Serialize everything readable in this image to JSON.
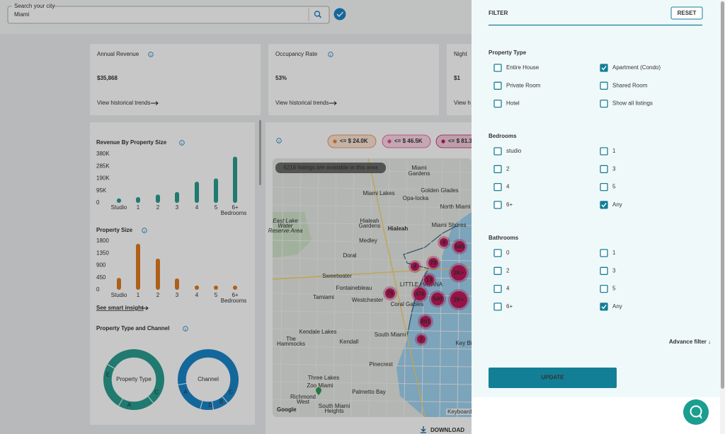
{
  "search": {
    "label": "Search your city",
    "value": "Miami"
  },
  "cards": [
    {
      "title": "Annual Revenue",
      "value": "$35,868",
      "link": "View historical trends"
    },
    {
      "title": "Occupancy Rate",
      "value": "53%",
      "link": "View historical trends"
    },
    {
      "title": "Night",
      "value": "$1",
      "link": "View h"
    }
  ],
  "revenue_chart": {
    "type": "bar",
    "title": "Revenue By Property Size",
    "ylim": [
      0,
      380000
    ],
    "yticks": [
      {
        "value": 380000,
        "label": "380K"
      },
      {
        "value": 285000,
        "label": "285K"
      },
      {
        "value": 190000,
        "label": "190K"
      },
      {
        "value": 95000,
        "label": "95K"
      },
      0
    ],
    "categories": [
      "Studio",
      "1",
      "2",
      "3",
      "4",
      "5",
      "6+"
    ],
    "values": [
      35000,
      45000,
      65000,
      85000,
      165000,
      190000,
      360000
    ],
    "x_label": "Bedrooms",
    "color": "#2a9d8f"
  },
  "size_chart": {
    "type": "bar",
    "title": "Property Size",
    "ylim": [
      0,
      1800
    ],
    "yticks": [
      1800,
      1350,
      900,
      450,
      0
    ],
    "categories": [
      "Studio",
      "1",
      "2",
      "3",
      "4",
      "5",
      "6+"
    ],
    "values": [
      440,
      1700,
      1150,
      420,
      160,
      90,
      60
    ],
    "x_label": "Bedrooms",
    "color": "#e07b1f",
    "link": "See smart insight"
  },
  "donuts": {
    "title": "Property Type and Channel",
    "charts": [
      {
        "label": "Property Type",
        "segments": [
          "E",
          "A",
          "C"
        ],
        "color": "#2a9d8f"
      },
      {
        "label": "Channel",
        "segments": [
          "A",
          "C",
          "B",
          "D"
        ],
        "color": "#1a84c7"
      }
    ]
  },
  "map": {
    "legend": [
      {
        "label": "<= $ 24.0K",
        "color": "#e8833a"
      },
      {
        "label": "<= $ 46.5K",
        "color": "#e84a8a"
      },
      {
        "label": "<= $ 81.3",
        "color": "#c2185b"
      }
    ],
    "notice": "6216 listings are available in this area",
    "places": [
      "Miami",
      "Gardens",
      "Golden Glades",
      "Miami Lakes",
      "Opa-locka",
      "North Miami",
      "Hialeah",
      "Hialeah",
      "Gardens",
      "Miami Shores",
      "Medley",
      "Doral",
      "Sweetwater",
      "Fontainebleau",
      "Tamiami",
      "Westchester",
      "Coral Gables",
      "Kendale Lakes",
      "South Miami",
      "The",
      "Hammocks",
      "Kendall",
      "Pinecrest",
      "Three Lakes",
      "Zoo Miami",
      "Palmetto Bay",
      "Richmond",
      "West",
      "South Miami",
      "Heights",
      "Key Bi",
      "East Lake",
      "Water",
      "Reserve Area",
      "LITTLE HAVANA"
    ],
    "clusters": [
      "4",
      "545",
      "79",
      "2K+",
      "4",
      "13",
      "476",
      "540",
      "2K+",
      "76",
      "801",
      "2"
    ],
    "google": "Google",
    "keyboard": "Keyboard sh",
    "download": "DOWNLOAD"
  },
  "filter": {
    "title": "FILTER",
    "reset": "RESET",
    "sections": [
      {
        "title": "Property Type",
        "options": [
          {
            "label": "Entire House",
            "checked": false
          },
          {
            "label": "Apartment (Condo)",
            "checked": true
          },
          {
            "label": "Private Room",
            "checked": false
          },
          {
            "label": "Shared Room",
            "checked": false
          },
          {
            "label": "Hotel",
            "checked": false
          },
          {
            "label": "Show all listings",
            "checked": false
          }
        ]
      },
      {
        "title": "Bedrooms",
        "options": [
          {
            "label": "studio",
            "checked": false
          },
          {
            "label": "1",
            "checked": false
          },
          {
            "label": "2",
            "checked": false
          },
          {
            "label": "3",
            "checked": false
          },
          {
            "label": "4",
            "checked": false
          },
          {
            "label": "5",
            "checked": false
          },
          {
            "label": "6+",
            "checked": false
          },
          {
            "label": "Any",
            "checked": true
          }
        ]
      },
      {
        "title": "Bathrooms",
        "options": [
          {
            "label": "0",
            "checked": false
          },
          {
            "label": "1",
            "checked": false
          },
          {
            "label": "2",
            "checked": false
          },
          {
            "label": "3",
            "checked": false
          },
          {
            "label": "4",
            "checked": false
          },
          {
            "label": "5",
            "checked": false
          },
          {
            "label": "6+",
            "checked": false
          },
          {
            "label": "Any",
            "checked": true
          }
        ]
      }
    ],
    "advance": "Advance filter ↓",
    "update": "UPDATE"
  }
}
